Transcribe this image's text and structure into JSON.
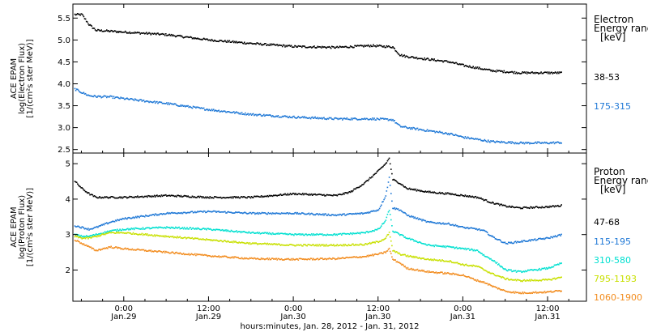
{
  "chart_data": {
    "type": "line",
    "xlabel": "hours:minutes, Jan. 28, 2012 - Jan. 31, 2012",
    "x_ticks": [
      {
        "t": 0,
        "time": "0:00",
        "date": "Jan.29"
      },
      {
        "t": 12,
        "time": "12:00",
        "date": "Jan.29"
      },
      {
        "t": 24,
        "time": "0:00",
        "date": "Jan.30"
      },
      {
        "t": 36,
        "time": "12:00",
        "date": "Jan.30"
      },
      {
        "t": 48,
        "time": "0:00",
        "date": "Jan.31"
      },
      {
        "t": 60,
        "time": "12:00",
        "date": "Jan.31"
      }
    ],
    "xlim": [
      -7.2,
      65.5
    ],
    "panels": [
      {
        "ylabel": [
          "ACE EPAM",
          "log(Electron Flux)",
          "[1/(cm²s ster MeV)]"
        ],
        "ylim": [
          2.42,
          5.82
        ],
        "yticks": [
          2.5,
          3.0,
          3.5,
          4.0,
          4.5,
          5.0,
          5.5
        ],
        "legend_title": [
          "Electron",
          "Energy ranges",
          "[keV]"
        ],
        "series": [
          {
            "name": "38-53",
            "color": "#000000",
            "x": [
              -7,
              -6,
              -5,
              -4,
              -2,
              0,
              6,
              12,
              18,
              24,
              30,
              35,
              38,
              39,
              40,
              43,
              46,
              48,
              52,
              56,
              60,
              62
            ],
            "y": [
              5.58,
              5.58,
              5.35,
              5.22,
              5.2,
              5.18,
              5.12,
              5.0,
              4.92,
              4.85,
              4.83,
              4.87,
              4.84,
              4.66,
              4.62,
              4.56,
              4.5,
              4.42,
              4.3,
              4.25,
              4.25,
              4.25
            ]
          },
          {
            "name": "175-315",
            "color": "#1f78d6",
            "x": [
              -7,
              -6,
              -5,
              -4,
              -2,
              0,
              6,
              12,
              18,
              24,
              30,
              35,
              38,
              39,
              40,
              43,
              46,
              48,
              52,
              56,
              60,
              62
            ],
            "y": [
              3.88,
              3.8,
              3.73,
              3.71,
              3.7,
              3.66,
              3.55,
              3.41,
              3.3,
              3.24,
              3.2,
              3.2,
              3.18,
              3.03,
              3.0,
              2.93,
              2.86,
              2.78,
              2.68,
              2.65,
              2.65,
              2.66
            ]
          }
        ]
      },
      {
        "ylabel": [
          "ACE EPAM",
          "log(Proton Flux)",
          "[1/(cm²s ster MeV)]"
        ],
        "ylim": [
          1.12,
          5.3
        ],
        "yticks": [
          2,
          3,
          4,
          5
        ],
        "legend_title": [
          "Proton",
          "Energy ranges",
          "[keV]"
        ],
        "series": [
          {
            "name": "47-68",
            "color": "#000000",
            "x": [
              -7,
              -6,
              -5,
              -4,
              -2,
              0,
              6,
              12,
              18,
              24,
              30,
              32,
              34,
              36,
              37,
              37.5,
              38,
              39,
              40,
              43,
              46,
              48,
              50,
              52,
              54,
              56,
              60,
              62
            ],
            "y": [
              4.5,
              4.3,
              4.15,
              4.05,
              4.05,
              4.05,
              4.1,
              4.05,
              4.05,
              4.15,
              4.1,
              4.2,
              4.45,
              4.8,
              5.0,
              5.15,
              4.55,
              4.45,
              4.3,
              4.2,
              4.15,
              4.1,
              4.05,
              3.9,
              3.8,
              3.75,
              3.78,
              3.82
            ]
          },
          {
            "name": "115-195",
            "color": "#1f78d6",
            "x": [
              -7,
              -6,
              -5,
              -4,
              -2,
              0,
              6,
              12,
              18,
              24,
              30,
              34,
              36,
              37,
              37.5,
              38,
              39,
              40,
              43,
              46,
              48,
              50,
              51,
              52,
              54,
              56,
              60,
              62
            ],
            "y": [
              3.25,
              3.2,
              3.15,
              3.2,
              3.35,
              3.45,
              3.6,
              3.65,
              3.6,
              3.6,
              3.55,
              3.6,
              3.7,
              4.1,
              4.6,
              3.75,
              3.7,
              3.55,
              3.35,
              3.3,
              3.2,
              3.15,
              3.1,
              2.95,
              2.75,
              2.8,
              2.9,
              3.0
            ]
          },
          {
            "name": "310-580",
            "color": "#00e0d0",
            "x": [
              -7,
              -6,
              -5,
              -4,
              -2,
              0,
              6,
              12,
              18,
              24,
              30,
              34,
              36,
              37,
              37.5,
              38,
              39,
              40,
              43,
              46,
              48,
              50,
              51,
              52,
              54,
              56,
              60,
              62
            ],
            "y": [
              3.0,
              2.95,
              2.95,
              3.0,
              3.1,
              3.15,
              3.2,
              3.15,
              3.05,
              3.0,
              3.0,
              3.05,
              3.15,
              3.4,
              3.7,
              3.1,
              3.0,
              2.9,
              2.7,
              2.65,
              2.6,
              2.55,
              2.4,
              2.3,
              2.0,
              1.95,
              2.05,
              2.2
            ]
          },
          {
            "name": "795-1193",
            "color": "#c8e000",
            "x": [
              -7,
              -6,
              -5,
              -4,
              -2,
              0,
              6,
              12,
              18,
              24,
              30,
              34,
              36,
              37,
              37.5,
              38,
              39,
              40,
              43,
              46,
              48,
              50,
              51,
              52,
              54,
              56,
              60,
              62
            ],
            "y": [
              2.95,
              2.9,
              2.9,
              2.95,
              3.05,
              3.05,
              2.95,
              2.85,
              2.75,
              2.7,
              2.7,
              2.72,
              2.8,
              2.9,
              3.05,
              2.55,
              2.45,
              2.4,
              2.3,
              2.25,
              2.15,
              2.1,
              2.0,
              1.9,
              1.75,
              1.7,
              1.72,
              1.8
            ]
          },
          {
            "name": "1060-1900",
            "color": "#f28c1e",
            "x": [
              -7,
              -6,
              -5,
              -4,
              -2,
              0,
              6,
              12,
              18,
              24,
              30,
              34,
              36,
              37,
              37.5,
              38,
              39,
              40,
              43,
              46,
              48,
              50,
              51,
              52,
              54,
              56,
              60,
              62
            ],
            "y": [
              2.85,
              2.75,
              2.65,
              2.55,
              2.65,
              2.6,
              2.5,
              2.4,
              2.32,
              2.3,
              2.32,
              2.38,
              2.45,
              2.5,
              2.6,
              2.3,
              2.2,
              2.05,
              1.95,
              1.9,
              1.85,
              1.7,
              1.65,
              1.55,
              1.4,
              1.35,
              1.38,
              1.42
            ]
          }
        ]
      }
    ]
  }
}
